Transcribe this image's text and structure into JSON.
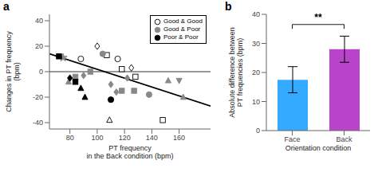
{
  "chart_data": [
    {
      "type": "scatter",
      "title": "a",
      "x_label": "PT frequency\nin the Back condition (bpm)",
      "y_label": "Changes in PT frequency\n(bpm)",
      "xlim": [
        65,
        183
      ],
      "ylim": [
        -45,
        45
      ],
      "xticks": [
        80,
        100,
        120,
        140,
        160
      ],
      "yticks": [
        -40,
        -20,
        0,
        20,
        40
      ],
      "legend": "upper right",
      "hlines": [
        0
      ],
      "series": [
        {
          "name": "Good & Good",
          "color": "white",
          "x": [
            88,
            100,
            107,
            115,
            118,
            125,
            128,
            109,
            148
          ],
          "values": [
            10,
            20,
            13,
            10,
            2,
            3,
            -4,
            -38,
            -38
          ],
          "markers": [
            "circle",
            "diamond",
            "square",
            "circle",
            "square",
            "diamond",
            "square",
            "triangle-up",
            "square"
          ]
        },
        {
          "name": "Good & Poor",
          "color": "#888888",
          "x": [
            75,
            79,
            84,
            90,
            95,
            104,
            110,
            114,
            118,
            122,
            127,
            138,
            152,
            160,
            163
          ],
          "values": [
            11,
            -8,
            -4,
            -3,
            0,
            14,
            -10,
            -16,
            -15,
            -5,
            -15,
            -18,
            -7,
            -7,
            -20
          ],
          "markers": [
            "star",
            "triangle-up",
            "square",
            "diamond",
            "square",
            "circle",
            "diamond",
            "diamond",
            "square",
            "diamond",
            "square",
            "circle",
            "triangle-up",
            "triangle-down",
            "triangle-up"
          ]
        },
        {
          "name": "Poor & Poor",
          "color": "black",
          "x": [
            72,
            80,
            84,
            88,
            91,
            110
          ],
          "values": [
            12,
            -5,
            -8,
            -13,
            -20,
            -22
          ],
          "markers": [
            "square",
            "diamond",
            "square",
            "triangle-up",
            "triangle-up",
            "circle"
          ]
        },
        {
          "type": "line",
          "color": "black",
          "x": [
            65,
            183
          ],
          "values": [
            14.0,
            -27.0
          ]
        }
      ]
    },
    {
      "type": "bar",
      "title": "b",
      "x_label": "Orientation condition",
      "y_label": "Absolute difference between\nPT frequencies (bpm)",
      "categories": [
        "Face",
        "Back"
      ],
      "values": [
        17.5,
        28.0
      ],
      "colors": [
        "#33AAFF",
        "#BB44CC"
      ],
      "errors": [
        4.5,
        4.5
      ],
      "ylim": [
        0,
        40
      ],
      "yticks": [
        0,
        10,
        20,
        30,
        40
      ],
      "grid": false,
      "annotations": [
        {
          "text": "**",
          "from": "Face",
          "to": "Back",
          "y": 36.5
        }
      ]
    }
  ]
}
